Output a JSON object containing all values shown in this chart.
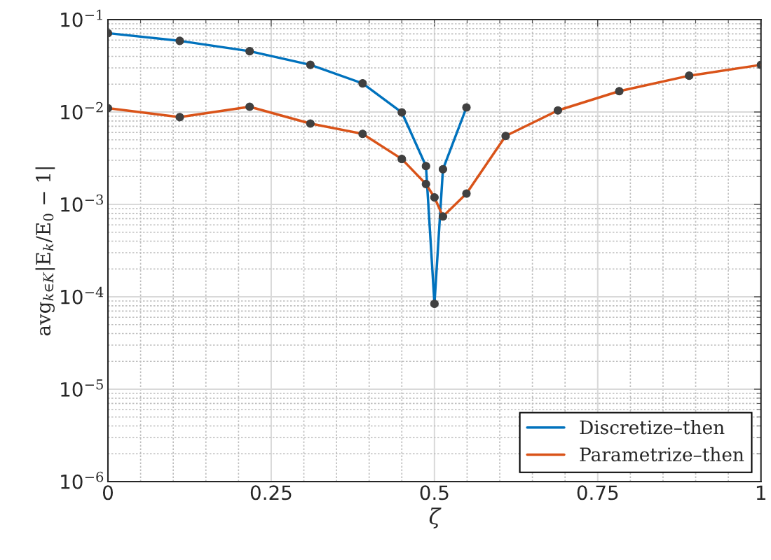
{
  "chart_data": {
    "type": "line",
    "xlabel": "ζ",
    "ylabel": "avg$_{k∈K}$|E$_{k}$/E$_{0}$ − 1|",
    "log": "y",
    "grid": true,
    "legend": "bottom right",
    "marker": "circle",
    "line_style": "solid",
    "xlim": [
      0,
      1
    ],
    "xticks": [
      0,
      0.25,
      0.5,
      0.75,
      1
    ],
    "ylim": [
      1e-06,
      0.1
    ],
    "yticks": [
      {
        "value": 1e-06,
        "label": "10$^{−6}$"
      },
      {
        "value": 1e-05,
        "label": "10$^{−5}$"
      },
      {
        "value": 0.0001,
        "label": "10$^{−4}$"
      },
      {
        "value": 0.001,
        "label": "10$^{−3}$"
      },
      {
        "value": 0.01,
        "label": "10$^{−2}$"
      },
      {
        "value": 0.1,
        "label": "10$^{−1}$"
      }
    ],
    "series": [
      {
        "name": "Discretize–then",
        "color": "#0072bd",
        "x": [
          0,
          0.11,
          0.217,
          0.31,
          0.39,
          0.45,
          0.487,
          0.5,
          0.513,
          0.549
        ],
        "values": [
          0.0713,
          0.0589,
          0.0455,
          0.0324,
          0.0204,
          0.0099,
          0.0026,
          8.4e-05,
          0.0024,
          0.0112
        ]
      },
      {
        "name": "Parametrize–then",
        "color": "#d95319",
        "x": [
          0,
          0.11,
          0.217,
          0.31,
          0.39,
          0.45,
          0.487,
          0.5,
          0.513,
          0.549,
          0.609,
          0.689,
          0.783,
          0.89,
          1
        ],
        "values": [
          0.011,
          0.0088,
          0.0114,
          0.0075,
          0.0058,
          0.0031,
          0.00166,
          0.00119,
          0.00074,
          0.00131,
          0.0055,
          0.0104,
          0.0168,
          0.0247,
          0.0324
        ]
      }
    ]
  }
}
